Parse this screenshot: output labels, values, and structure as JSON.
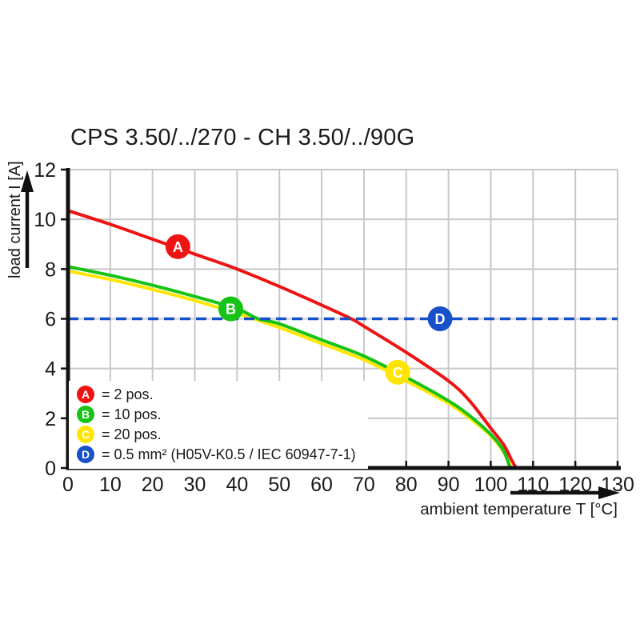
{
  "chart_data": {
    "type": "line",
    "title": "CPS 3.50/../270 - CH 3.50/../90G",
    "xlabel": "ambient temperature T [°C]",
    "ylabel": "load current I [A]",
    "xlim": [
      0,
      130
    ],
    "ylim": [
      0,
      12
    ],
    "xticks": [
      0,
      10,
      20,
      30,
      40,
      50,
      60,
      70,
      80,
      90,
      100,
      110,
      120,
      130
    ],
    "yticks": [
      0,
      2,
      4,
      6,
      8,
      10,
      12
    ],
    "grid": true,
    "grid_color": "#c8c8c8",
    "axis_color": "#111111",
    "legend_position": "inside bottom-left",
    "series": [
      {
        "id": "C",
        "name": "20 pos.",
        "color": "#ffe600",
        "style": "solid",
        "points": [
          [
            0,
            7.92
          ],
          [
            10,
            7.58
          ],
          [
            20,
            7.18
          ],
          [
            30,
            6.73
          ],
          [
            40,
            6.22
          ],
          [
            50,
            5.65
          ],
          [
            60,
            5.0
          ],
          [
            70,
            4.35
          ],
          [
            80,
            3.5
          ],
          [
            90,
            2.6
          ],
          [
            95,
            2.0
          ],
          [
            100,
            1.3
          ],
          [
            103,
            0.65
          ],
          [
            104.9,
            0
          ]
        ]
      },
      {
        "id": "B",
        "name": "10 pos.",
        "color": "#16c316",
        "style": "solid",
        "points": [
          [
            0,
            8.1
          ],
          [
            10,
            7.75
          ],
          [
            20,
            7.35
          ],
          [
            30,
            6.9
          ],
          [
            40,
            6.4
          ],
          [
            45,
            6.0
          ],
          [
            50,
            5.8
          ],
          [
            60,
            5.15
          ],
          [
            70,
            4.5
          ],
          [
            80,
            3.65
          ],
          [
            90,
            2.7
          ],
          [
            95,
            2.1
          ],
          [
            100,
            1.35
          ],
          [
            103,
            0.7
          ],
          [
            104.6,
            0
          ]
        ]
      },
      {
        "id": "A",
        "name": "2 pos.",
        "color": "#ee1414",
        "style": "solid",
        "points": [
          [
            0,
            10.35
          ],
          [
            10,
            9.8
          ],
          [
            20,
            9.2
          ],
          [
            30,
            8.6
          ],
          [
            40,
            8.0
          ],
          [
            50,
            7.3
          ],
          [
            60,
            6.55
          ],
          [
            67,
            6.0
          ],
          [
            70,
            5.7
          ],
          [
            80,
            4.65
          ],
          [
            90,
            3.5
          ],
          [
            95,
            2.7
          ],
          [
            100,
            1.6
          ],
          [
            103,
            0.95
          ],
          [
            105,
            0.3
          ],
          [
            106,
            0
          ]
        ]
      },
      {
        "id": "D",
        "name": "0.5 mm² (H05V-K0.5 / IEC 60947-7-1)",
        "color": "#1651c9",
        "style": "dashed",
        "points": [
          [
            0,
            6
          ],
          [
            130,
            6
          ]
        ]
      }
    ],
    "markers": [
      {
        "letter": "A",
        "x": 26,
        "y": 8.9,
        "color": "#ee1414"
      },
      {
        "letter": "B",
        "x": 38.5,
        "y": 6.4,
        "color": "#16c316"
      },
      {
        "letter": "C",
        "x": 78,
        "y": 3.85,
        "color": "#ffe600"
      },
      {
        "letter": "D",
        "x": 88,
        "y": 6.0,
        "color": "#1651c9"
      }
    ],
    "legend": [
      {
        "letter": "A",
        "color": "#ee1414",
        "label": "= 2 pos."
      },
      {
        "letter": "B",
        "color": "#16c316",
        "label": "= 10 pos."
      },
      {
        "letter": "C",
        "color": "#ffe600",
        "label": "= 20 pos."
      },
      {
        "letter": "D",
        "color": "#1651c9",
        "label": "= 0.5 mm² (H05V-K0.5 / IEC 60947-7-1)"
      }
    ]
  }
}
